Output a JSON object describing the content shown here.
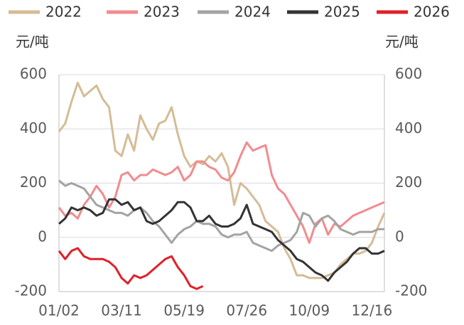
{
  "chart_data": {
    "type": "line",
    "y_unit": "元/吨",
    "y2_unit": "元/吨",
    "categories": [
      "01/02",
      null,
      null,
      null,
      null,
      null,
      null,
      null,
      null,
      null,
      "03/11",
      null,
      null,
      null,
      null,
      null,
      null,
      null,
      null,
      null,
      "05/19",
      null,
      null,
      null,
      null,
      null,
      null,
      null,
      null,
      null,
      "07/26",
      null,
      null,
      null,
      null,
      null,
      null,
      null,
      null,
      null,
      "10/09",
      null,
      null,
      null,
      null,
      null,
      null,
      null,
      null,
      null,
      "12/16",
      null,
      null
    ],
    "series": [
      {
        "name": "2022",
        "color": "#d4bc96",
        "values": [
          390,
          420,
          500,
          570,
          520,
          540,
          560,
          510,
          480,
          320,
          300,
          380,
          320,
          450,
          400,
          360,
          420,
          430,
          480,
          380,
          300,
          260,
          280,
          270,
          300,
          280,
          310,
          260,
          120,
          200,
          180,
          150,
          120,
          60,
          40,
          20,
          -40,
          -80,
          -140,
          -140,
          -150,
          -150,
          -150,
          -140,
          -130,
          -100,
          -80,
          -60,
          -60,
          -50,
          -20,
          40,
          90
        ]
      },
      {
        "name": "2023",
        "color": "#f28b8f",
        "values": [
          110,
          80,
          90,
          70,
          120,
          150,
          190,
          160,
          110,
          150,
          230,
          240,
          210,
          230,
          230,
          250,
          240,
          230,
          240,
          260,
          210,
          230,
          280,
          280,
          260,
          250,
          220,
          210,
          240,
          300,
          350,
          320,
          330,
          340,
          230,
          180,
          160,
          120,
          80,
          40,
          -20,
          50,
          70,
          10,
          50,
          40,
          60,
          80,
          90,
          100,
          110,
          120,
          130
        ]
      },
      {
        "name": "2024",
        "color": "#a3a3a3",
        "values": [
          210,
          190,
          200,
          190,
          180,
          150,
          120,
          110,
          100,
          90,
          90,
          80,
          100,
          110,
          90,
          60,
          40,
          10,
          -20,
          10,
          30,
          40,
          60,
          50,
          50,
          40,
          10,
          0,
          10,
          10,
          20,
          -20,
          -30,
          -40,
          -50,
          -30,
          -20,
          -10,
          20,
          90,
          80,
          40,
          70,
          80,
          60,
          30,
          20,
          10,
          20,
          20,
          20,
          30,
          30
        ]
      },
      {
        "name": "2025",
        "color": "#333333",
        "values": [
          50,
          70,
          110,
          100,
          110,
          100,
          80,
          90,
          140,
          140,
          120,
          130,
          100,
          110,
          60,
          50,
          60,
          80,
          100,
          130,
          130,
          110,
          60,
          60,
          80,
          50,
          40,
          40,
          50,
          70,
          120,
          50,
          40,
          30,
          20,
          -10,
          -30,
          -50,
          -80,
          -90,
          -110,
          -130,
          -140,
          -160,
          -130,
          -110,
          -90,
          -60,
          -40,
          -40,
          -60,
          -60,
          -50
        ]
      },
      {
        "name": "2026",
        "color": "#e0202a",
        "values": [
          -50,
          -80,
          -50,
          -40,
          -70,
          -80,
          -80,
          -80,
          -90,
          -110,
          -150,
          -170,
          -140,
          -150,
          -140,
          -120,
          -100,
          -80,
          -70,
          -110,
          -140,
          -180,
          -190,
          -180,
          null,
          null,
          null,
          null,
          null,
          null,
          null,
          null,
          null,
          null,
          null,
          null,
          null,
          null,
          null,
          null,
          null,
          null,
          null,
          null,
          null,
          null,
          null,
          null,
          null,
          null,
          null,
          null,
          null
        ]
      }
    ],
    "ylim": [
      -200,
      600
    ],
    "yticks": [
      -200,
      0,
      200,
      400,
      600
    ],
    "y2lim": [
      -200,
      600
    ],
    "y2ticks": [
      -200,
      0,
      200,
      400,
      600
    ],
    "grid": true
  }
}
